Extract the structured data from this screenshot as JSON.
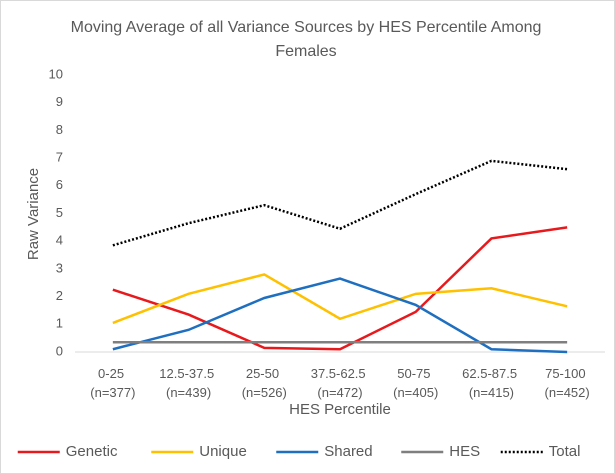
{
  "chart_data": {
    "type": "line",
    "title": "Moving Average of all Variance Sources by HES Percentile Among Females",
    "x_label": "HES Percentile",
    "y_label": "Raw Variance",
    "categories": [
      "0-25 (n=377)",
      "12.5-37.5 (n=439)",
      "25-50 (n=526)",
      "37.5-62.5 (n=472)",
      "50-75 (n=405)",
      "62.5-87.5 (n=415)",
      "75-100 (n=452)"
    ],
    "series": [
      {
        "name": "Genetic",
        "color": "#e8191c",
        "line_style": "solid",
        "values": [
          2.25,
          1.35,
          0.15,
          0.1,
          1.45,
          4.1,
          4.5
        ]
      },
      {
        "name": "Unique",
        "color": "#ffc000",
        "line_style": "solid",
        "values": [
          1.05,
          2.1,
          2.8,
          1.2,
          2.1,
          2.3,
          1.65
        ]
      },
      {
        "name": "Shared",
        "color": "#1f6fc0",
        "line_style": "solid",
        "values": [
          0.1,
          0.8,
          1.95,
          2.65,
          1.7,
          0.1,
          0.0
        ]
      },
      {
        "name": "HES",
        "color": "#7f7f7f",
        "line_style": "solid",
        "values": [
          0.35,
          0.35,
          0.35,
          0.35,
          0.35,
          0.35,
          0.35
        ]
      },
      {
        "name": "Total",
        "color": "#000000",
        "line_style": "dotted",
        "values": [
          3.85,
          4.65,
          5.3,
          4.45,
          5.7,
          6.9,
          6.6
        ]
      }
    ],
    "ylim": [
      0,
      10
    ],
    "yticks": [
      0,
      1,
      2,
      3,
      4,
      5,
      6,
      7,
      8,
      9,
      10
    ],
    "grid": false,
    "legend": "bottom"
  }
}
